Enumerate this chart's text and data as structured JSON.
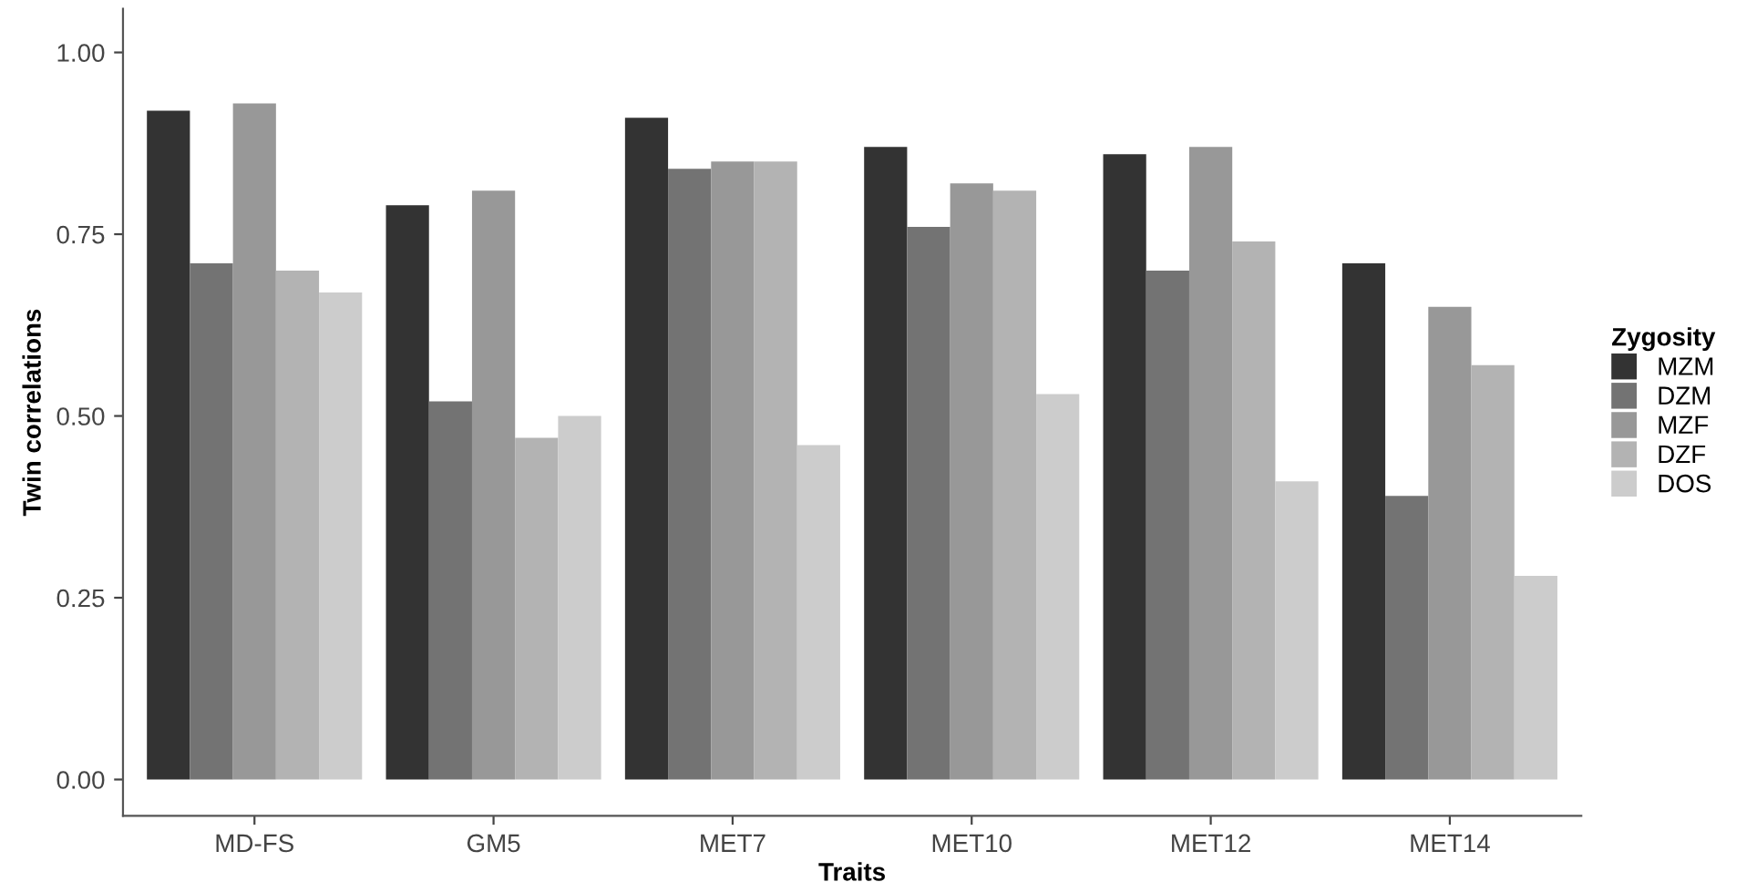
{
  "chart_data": {
    "type": "bar",
    "xlabel": "Traits",
    "ylabel": "Twin correlations",
    "legend_title": "Zygosity",
    "categories": [
      "MD-FS",
      "GM5",
      "MET7",
      "MET10",
      "MET12",
      "MET14"
    ],
    "series": [
      {
        "name": "MZM",
        "color": "#333333",
        "values": [
          0.92,
          0.79,
          0.91,
          0.87,
          0.86,
          0.71
        ]
      },
      {
        "name": "DZM",
        "color": "#737373",
        "values": [
          0.71,
          0.52,
          0.84,
          0.76,
          0.7,
          0.39
        ]
      },
      {
        "name": "MZF",
        "color": "#989898",
        "values": [
          0.93,
          0.81,
          0.85,
          0.82,
          0.87,
          0.65
        ]
      },
      {
        "name": "DZF",
        "color": "#b3b3b3",
        "values": [
          0.7,
          0.47,
          0.85,
          0.81,
          0.74,
          0.57
        ]
      },
      {
        "name": "DOS",
        "color": "#cccccc",
        "values": [
          0.67,
          0.5,
          0.46,
          0.53,
          0.41,
          0.28
        ]
      }
    ],
    "ylim": [
      -0.05,
      1.06
    ],
    "yticks": [
      {
        "value": 0,
        "label": "0.00"
      },
      {
        "value": 0.25,
        "label": "0.25"
      },
      {
        "value": 0.5,
        "label": "0.50"
      },
      {
        "value": 0.75,
        "label": "0.75"
      },
      {
        "value": 1,
        "label": "1.00"
      }
    ],
    "grid": false,
    "legend": "right"
  }
}
